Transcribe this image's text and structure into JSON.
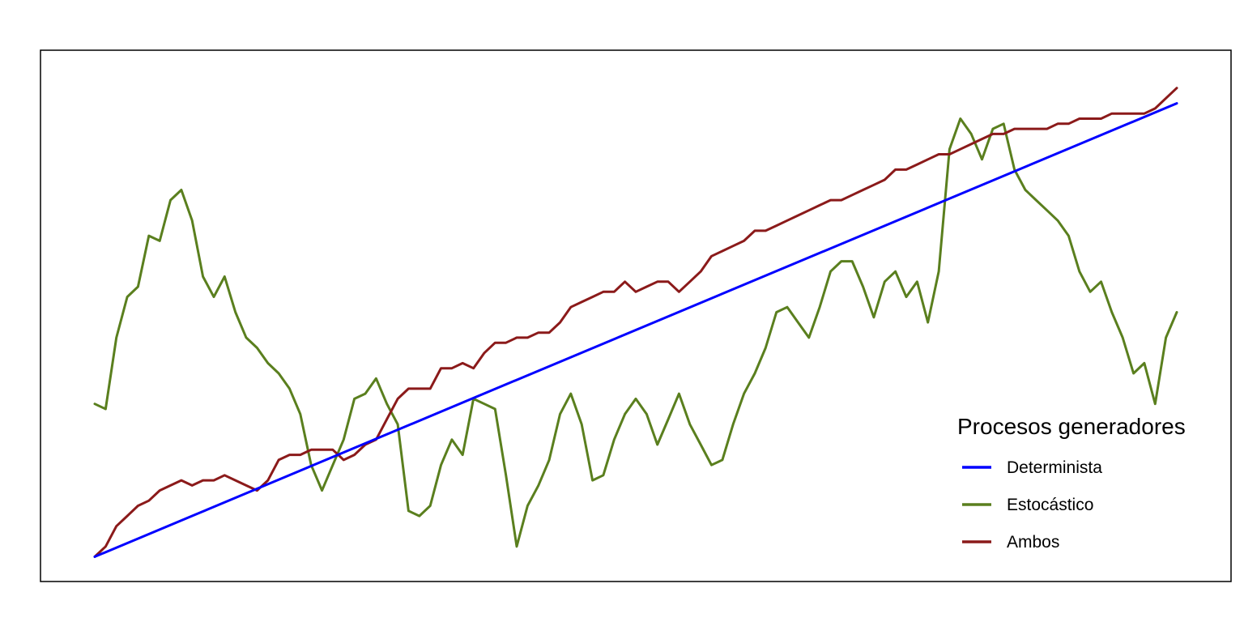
{
  "chart_data": {
    "type": "line",
    "title": "",
    "xlabel": "",
    "ylabel": "",
    "axes_visible": false,
    "grid": false,
    "xlim": [
      0,
      500
    ],
    "ylim": [
      0,
      100
    ],
    "legend": {
      "title": "Procesos generadores",
      "position": "bottom-right"
    },
    "series": [
      {
        "name": "Determinista",
        "color": "#0000FF",
        "x": [
          0,
          500
        ],
        "values": [
          2,
          91
        ]
      },
      {
        "name": "Estocástico",
        "color": "#5A7F1E",
        "x": [
          0,
          5,
          10,
          15,
          20,
          25,
          30,
          35,
          40,
          45,
          50,
          55,
          60,
          65,
          70,
          75,
          80,
          85,
          90,
          95,
          100,
          105,
          110,
          115,
          120,
          125,
          130,
          135,
          140,
          145,
          150,
          155,
          160,
          165,
          170,
          175,
          180,
          185,
          190,
          195,
          200,
          205,
          210,
          215,
          220,
          225,
          230,
          235,
          240,
          245,
          250,
          255,
          260,
          265,
          270,
          275,
          280,
          285,
          290,
          295,
          300,
          305,
          310,
          315,
          320,
          325,
          330,
          335,
          340,
          345,
          350,
          355,
          360,
          365,
          370,
          375,
          380,
          385,
          390,
          395,
          400,
          405,
          410,
          415,
          420,
          425,
          430,
          435,
          440,
          445,
          450,
          455,
          460,
          465,
          470,
          475,
          480,
          485,
          490,
          495,
          500
        ],
        "values": [
          32,
          31,
          45,
          53,
          55,
          65,
          64,
          72,
          74,
          68,
          57,
          53,
          57,
          50,
          45,
          43,
          40,
          38,
          35,
          30,
          20,
          15,
          20,
          25,
          33,
          34,
          37,
          32,
          28,
          11,
          10,
          12,
          20,
          25,
          22,
          33,
          32,
          31,
          18,
          4,
          12,
          16,
          21,
          30,
          34,
          28,
          17,
          18,
          25,
          30,
          33,
          30,
          24,
          29,
          34,
          28,
          24,
          20,
          21,
          28,
          34,
          38,
          43,
          50,
          51,
          48,
          45,
          51,
          58,
          60,
          60,
          55,
          49,
          56,
          58,
          53,
          56,
          48,
          58,
          82,
          88,
          85,
          80,
          86,
          87,
          78,
          74,
          72,
          70,
          68,
          65,
          58,
          54,
          56,
          50,
          45,
          38,
          40,
          32,
          45,
          50
        ]
      },
      {
        "name": "Ambos",
        "color": "#8B1A1A",
        "x": [
          0,
          5,
          10,
          15,
          20,
          25,
          30,
          35,
          40,
          45,
          50,
          55,
          60,
          65,
          70,
          75,
          80,
          85,
          90,
          95,
          100,
          105,
          110,
          115,
          120,
          125,
          130,
          135,
          140,
          145,
          150,
          155,
          160,
          165,
          170,
          175,
          180,
          185,
          190,
          195,
          200,
          205,
          210,
          215,
          220,
          225,
          230,
          235,
          240,
          245,
          250,
          255,
          260,
          265,
          270,
          275,
          280,
          285,
          290,
          295,
          300,
          305,
          310,
          315,
          320,
          325,
          330,
          335,
          340,
          345,
          350,
          355,
          360,
          365,
          370,
          375,
          380,
          385,
          390,
          395,
          400,
          405,
          410,
          415,
          420,
          425,
          430,
          435,
          440,
          445,
          450,
          455,
          460,
          465,
          470,
          475,
          480,
          485,
          490,
          495,
          500
        ],
        "values": [
          2,
          4,
          8,
          10,
          12,
          13,
          15,
          16,
          17,
          16,
          17,
          17,
          18,
          17,
          16,
          15,
          17,
          21,
          22,
          22,
          23,
          23,
          23,
          21,
          22,
          24,
          25,
          29,
          33,
          35,
          35,
          35,
          39,
          39,
          40,
          39,
          42,
          44,
          44,
          45,
          45,
          46,
          46,
          48,
          51,
          52,
          53,
          54,
          54,
          56,
          54,
          55,
          56,
          56,
          54,
          56,
          58,
          61,
          62,
          63,
          64,
          66,
          66,
          67,
          68,
          69,
          70,
          71,
          72,
          72,
          73,
          74,
          75,
          76,
          78,
          78,
          79,
          80,
          81,
          81,
          82,
          83,
          84,
          85,
          85,
          86,
          86,
          86,
          86,
          87,
          87,
          88,
          88,
          88,
          89,
          89,
          89,
          89,
          90,
          92,
          94
        ]
      }
    ]
  }
}
